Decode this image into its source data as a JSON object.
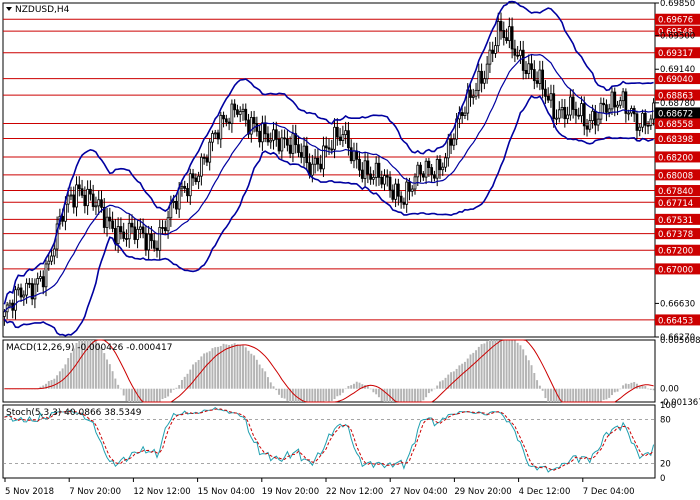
{
  "chart_data": {
    "type": "candlestick",
    "main": {
      "title": "NZDUSD,H4",
      "ylim": [
        0.6627,
        0.6985
      ],
      "grid": false,
      "price_scale_labels": [
        "0.69850",
        "0.69500",
        "0.69140",
        "0.68780",
        "0.66630",
        "0.66270"
      ],
      "levels": [
        {
          "value": 0.69676,
          "label": "0.69676"
        },
        {
          "value": 0.69548,
          "label": "0.69548"
        },
        {
          "value": 0.69317,
          "label": "0.69317"
        },
        {
          "value": 0.6904,
          "label": "0.69040"
        },
        {
          "value": 0.68863,
          "label": "0.68863"
        },
        {
          "value": 0.68558,
          "label": "0.68558"
        },
        {
          "value": 0.68398,
          "label": "0.68398"
        },
        {
          "value": 0.682,
          "label": "0.68200"
        },
        {
          "value": 0.68008,
          "label": "0.68008"
        },
        {
          "value": 0.6784,
          "label": "0.67840"
        },
        {
          "value": 0.67714,
          "label": "0.67714"
        },
        {
          "value": 0.67531,
          "label": "0.67531"
        },
        {
          "value": 0.67378,
          "label": "0.67378"
        },
        {
          "value": 0.672,
          "label": "0.67200"
        },
        {
          "value": 0.67,
          "label": "0.67000"
        },
        {
          "value": 0.66453,
          "label": "0.66453"
        }
      ],
      "current_price": {
        "value": 0.68672,
        "label": "0.68672"
      },
      "close_path": [
        [
          0,
          0.665
        ],
        [
          8,
          0.668
        ],
        [
          16,
          0.67
        ],
        [
          22,
          0.677
        ],
        [
          26,
          0.679
        ],
        [
          30,
          0.6775
        ],
        [
          36,
          0.6755
        ],
        [
          42,
          0.674
        ],
        [
          48,
          0.6735
        ],
        [
          54,
          0.673
        ],
        [
          60,
          0.676
        ],
        [
          66,
          0.679
        ],
        [
          72,
          0.682
        ],
        [
          78,
          0.685
        ],
        [
          84,
          0.688
        ],
        [
          88,
          0.6855
        ],
        [
          92,
          0.684
        ],
        [
          98,
          0.6845
        ],
        [
          104,
          0.683
        ],
        [
          110,
          0.681
        ],
        [
          116,
          0.683
        ],
        [
          122,
          0.684
        ],
        [
          128,
          0.6815
        ],
        [
          132,
          0.68
        ],
        [
          138,
          0.679
        ],
        [
          144,
          0.678
        ],
        [
          150,
          0.68
        ],
        [
          156,
          0.681
        ],
        [
          160,
          0.683
        ],
        [
          166,
          0.687
        ],
        [
          170,
          0.69
        ],
        [
          174,
          0.692
        ],
        [
          178,
          0.695
        ],
        [
          182,
          0.6945
        ],
        [
          186,
          0.693
        ],
        [
          190,
          0.691
        ],
        [
          194,
          0.689
        ],
        [
          198,
          0.687
        ],
        [
          204,
          0.6875
        ],
        [
          210,
          0.685
        ],
        [
          216,
          0.688
        ],
        [
          222,
          0.6875
        ],
        [
          228,
          0.686
        ],
        [
          234,
          0.6865
        ]
      ],
      "bollinger": {
        "period": 20,
        "k": 2
      }
    },
    "macd": {
      "label": "MACD(12,26,9) -0.000426 -0.000417",
      "ylim": [
        -0.001367,
        0.005008
      ],
      "scale_labels": [
        "0.005008",
        "0.00",
        "-0.001367"
      ]
    },
    "stoch": {
      "label": "Stoch(5,3,3) 40.0866 38.5349",
      "ylim": [
        0,
        100
      ],
      "scale_labels": [
        "100",
        "80",
        "20",
        "0"
      ]
    },
    "x_tick_labels": [
      "5 Nov 2018",
      "7 Nov 20:00",
      "12 Nov 12:00",
      "15 Nov 04:00",
      "19 Nov 20:00",
      "22 Nov 12:00",
      "27 Nov 04:00",
      "29 Nov 20:00",
      "4 Dec 12:00",
      "7 Dec 04:00"
    ],
    "colors": {
      "up": "#000000",
      "down": "#000000",
      "bands": "#0000a0",
      "mid": "#0000a0",
      "levels": "#cc0000",
      "macd_hist": "#b4b4b4",
      "macd_signal": "#cc0000",
      "stoch_main": "#20a0b0",
      "stoch_signal": "#cc0000",
      "current_tag": "#000000"
    }
  }
}
